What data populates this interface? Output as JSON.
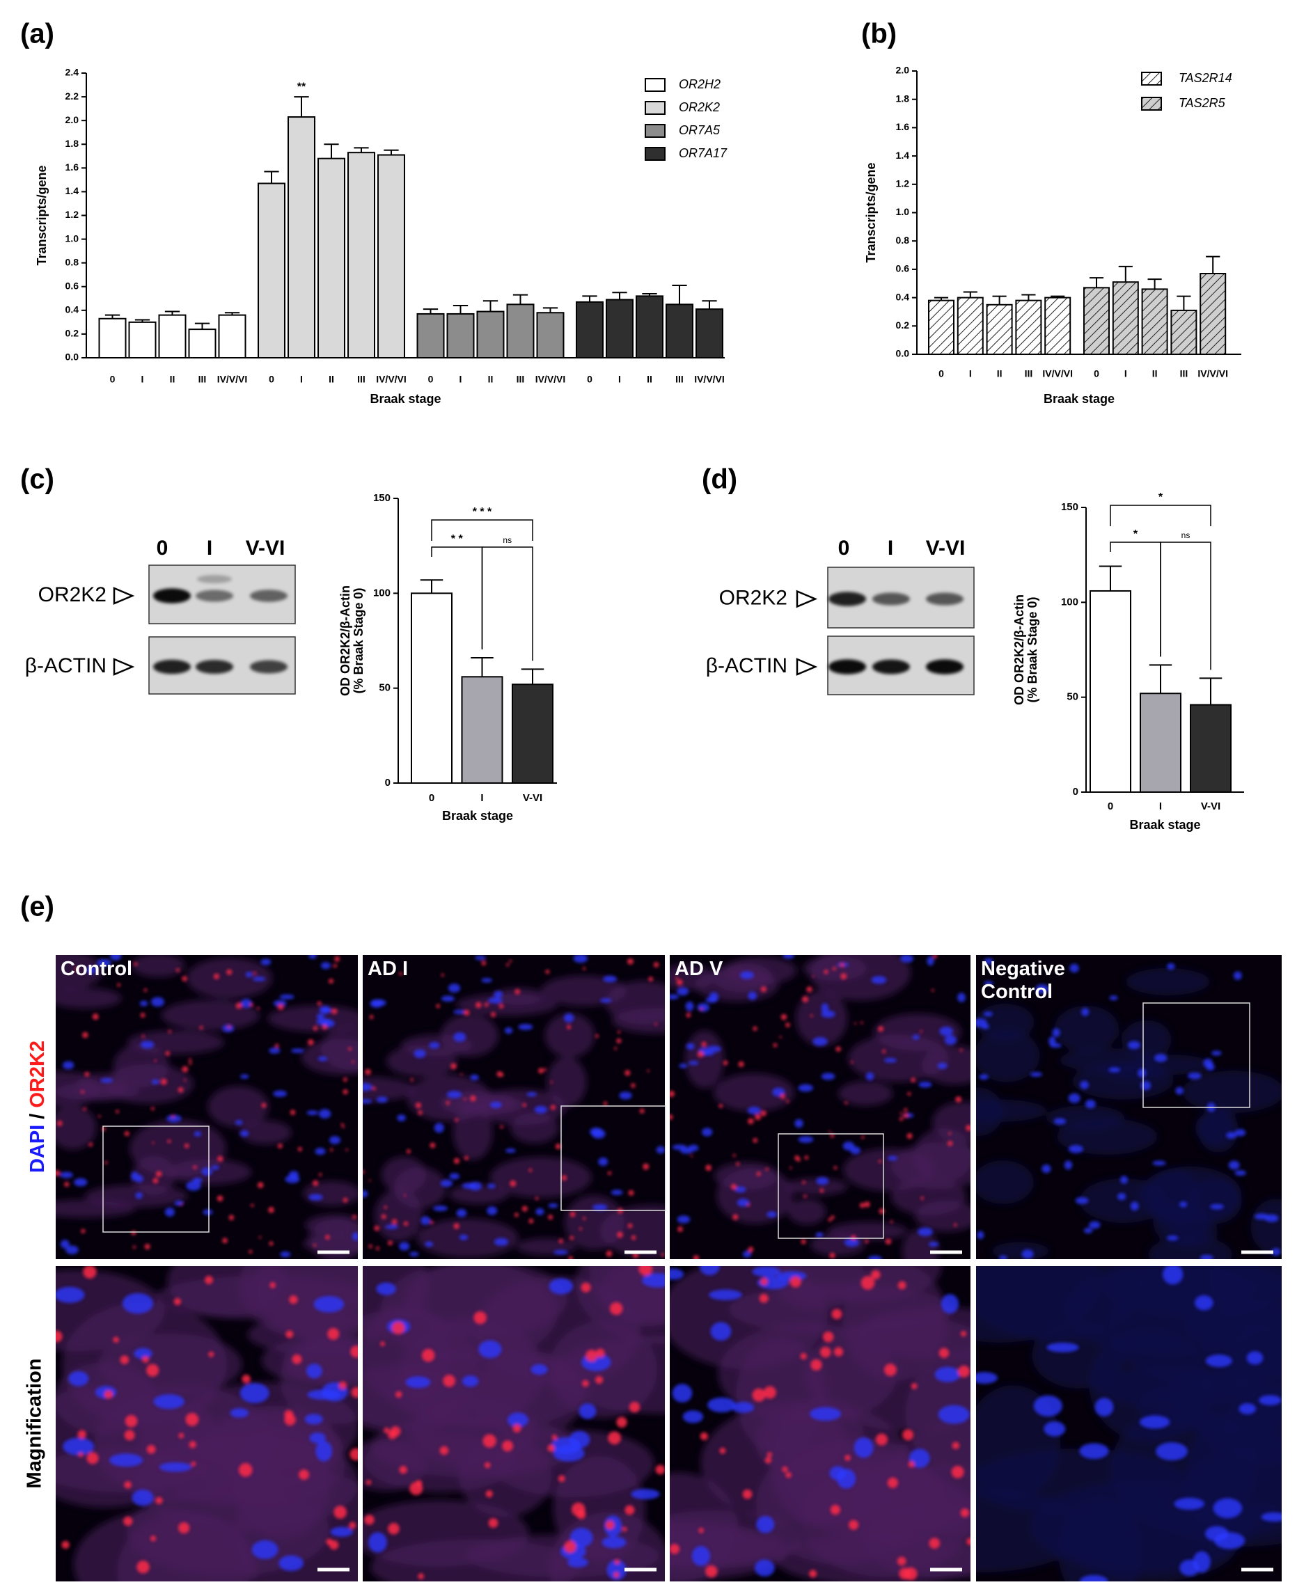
{
  "panel_labels": [
    "(a)",
    "(b)",
    "(c)",
    "(d)",
    "(e)"
  ],
  "chart_data": [
    {
      "type": "bar",
      "ylabel": "Transcripts/gene",
      "xlabel": "Braak stage",
      "categories": [
        "0",
        "I",
        "II",
        "III",
        "IV/V/VI"
      ],
      "series": [
        {
          "name": "OR2H2",
          "color": "#ffffff",
          "values": [
            0.33,
            0.3,
            0.36,
            0.24,
            0.36
          ],
          "errors": [
            0.03,
            0.02,
            0.03,
            0.05,
            0.02
          ]
        },
        {
          "name": "OR2K2",
          "color": "#d9d9d9",
          "values": [
            1.47,
            2.03,
            1.68,
            1.73,
            1.71
          ],
          "errors": [
            0.1,
            0.17,
            0.12,
            0.04,
            0.04
          ],
          "significance": [
            null,
            "**",
            null,
            null,
            null
          ]
        },
        {
          "name": "OR7A5",
          "color": "#8c8c8c",
          "values": [
            0.37,
            0.37,
            0.39,
            0.45,
            0.38
          ],
          "errors": [
            0.04,
            0.07,
            0.09,
            0.08,
            0.04
          ]
        },
        {
          "name": "OR7A17",
          "color": "#2f2f2f",
          "values": [
            0.47,
            0.49,
            0.52,
            0.45,
            0.41
          ],
          "errors": [
            0.05,
            0.06,
            0.02,
            0.16,
            0.07
          ]
        }
      ],
      "ylim": [
        0,
        2.4
      ],
      "yticks": [
        {
          "value": 0,
          "label": "0.0"
        },
        0.2,
        0.4,
        0.6,
        0.8,
        {
          "value": 1,
          "label": "1.0"
        },
        1.2,
        1.4,
        1.6,
        1.8,
        {
          "value": 2,
          "label": "2.0"
        },
        2.2,
        2.4
      ],
      "legend": "upper right"
    },
    {
      "type": "bar",
      "ylabel": "Transcripts/gene",
      "xlabel": "Braak stage",
      "categories": [
        "0",
        "I",
        "II",
        "III",
        "IV/V/VI"
      ],
      "series": [
        {
          "name": "TAS2R14",
          "color": "#ffffff",
          "values": [
            0.38,
            0.4,
            0.35,
            0.38,
            0.4
          ],
          "errors": [
            0.02,
            0.04,
            0.06,
            0.04,
            0.01
          ]
        },
        {
          "name": "TAS2R5",
          "color": "#cfcfcf",
          "values": [
            0.47,
            0.51,
            0.46,
            0.31,
            0.57
          ],
          "errors": [
            0.07,
            0.11,
            0.07,
            0.1,
            0.12
          ]
        }
      ],
      "hatch": true,
      "ylim": [
        0,
        2.0
      ],
      "yticks": [
        {
          "value": 0,
          "label": "0.0"
        },
        0.2,
        0.4,
        0.6,
        0.8,
        {
          "value": 1,
          "label": "1.0"
        },
        1.2,
        1.4,
        1.6,
        1.8,
        {
          "value": 2,
          "label": "2.0"
        }
      ],
      "legend": "upper right"
    },
    {
      "type": "bar",
      "ylabel": [
        "OD OR2K2/β-Actin",
        "(% Braak Stage 0)"
      ],
      "xlabel": "Braak stage",
      "categories": [
        "0",
        "I",
        "V-VI"
      ],
      "values": [
        100,
        56,
        52
      ],
      "errors": [
        7,
        10,
        8
      ],
      "colors": [
        "#ffffff",
        "#a7a5ad",
        "#2e2e2e"
      ],
      "ylim": [
        0,
        150
      ],
      "yticks": [
        0,
        50,
        100,
        150
      ],
      "comparisons": [
        {
          "groups": [
            "0",
            "V-VI"
          ],
          "label": "* * *"
        },
        {
          "groups": [
            "0",
            "I"
          ],
          "label": "* *"
        },
        {
          "groups": [
            "I",
            "V-VI"
          ],
          "label": "ns"
        }
      ]
    },
    {
      "type": "bar",
      "ylabel": [
        "OD OR2K2/β-Actin",
        "(% Braak Stage 0)"
      ],
      "xlabel": "Braak stage",
      "categories": [
        "0",
        "I",
        "V-VI"
      ],
      "values": [
        106,
        52,
        46
      ],
      "errors": [
        13,
        15,
        14
      ],
      "colors": [
        "#ffffff",
        "#a7a5ad",
        "#2e2e2e"
      ],
      "ylim": [
        0,
        150
      ],
      "yticks": [
        0,
        50,
        100,
        150
      ],
      "comparisons": [
        {
          "groups": [
            "0",
            "V-VI"
          ],
          "label": "*"
        },
        {
          "groups": [
            "0",
            "I"
          ],
          "label": "*"
        },
        {
          "groups": [
            "I",
            "V-VI"
          ],
          "label": "ns"
        }
      ]
    }
  ],
  "blots": [
    {
      "lanes": [
        "0",
        "I",
        "V-VI"
      ],
      "rows": [
        "OR2K2",
        "β-ACTIN"
      ]
    },
    {
      "lanes": [
        "0",
        "I",
        "V-VI"
      ],
      "rows": [
        "OR2K2",
        "β-ACTIN"
      ]
    }
  ],
  "micrographs": {
    "columns": [
      "Control",
      "AD I",
      "AD V",
      "Negative Control"
    ],
    "row_labels": [
      [
        "DAPI",
        "/",
        "OR2K2"
      ],
      "Magnification"
    ]
  }
}
